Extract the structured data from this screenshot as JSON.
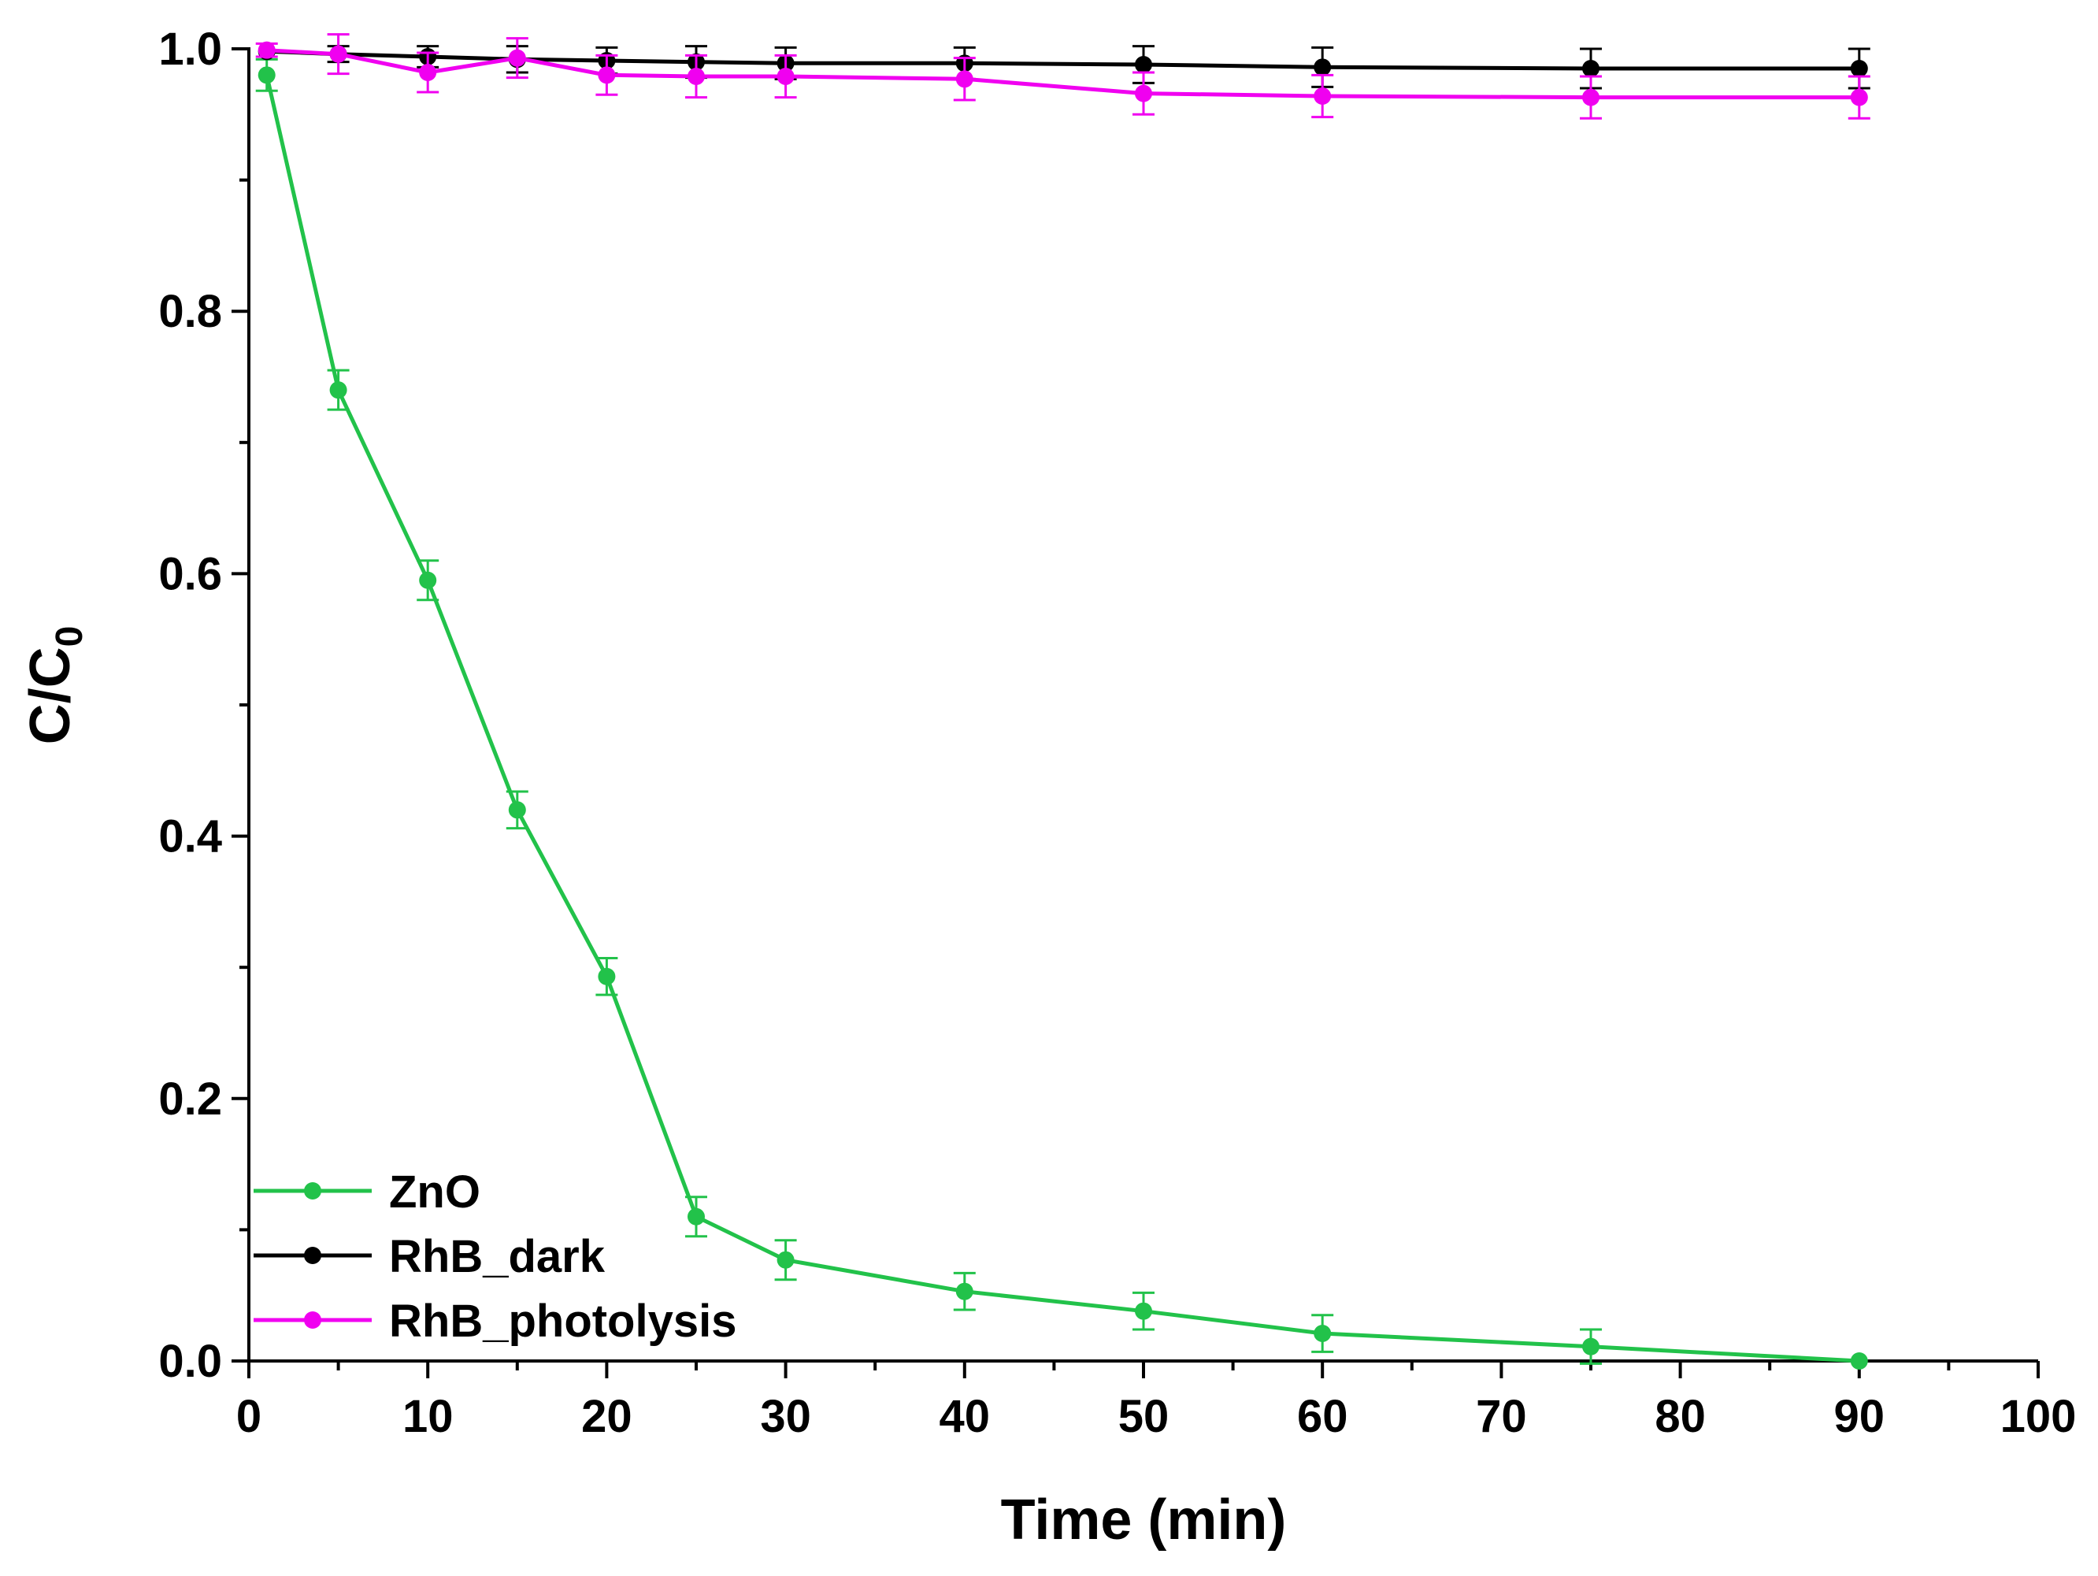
{
  "chart_data": {
    "type": "line",
    "title": "",
    "xlabel": "Time (min)",
    "ylabel_main": "C/C",
    "ylabel_sub": "0",
    "xlim": [
      0,
      100
    ],
    "ylim": [
      0,
      1.0
    ],
    "x_ticks": [
      0,
      10,
      20,
      30,
      40,
      50,
      60,
      70,
      80,
      90,
      100
    ],
    "x_tick_labels": [
      "0",
      "10",
      "20",
      "30",
      "40",
      "50",
      "60",
      "70",
      "80",
      "90",
      "100"
    ],
    "y_ticks": [
      0,
      0.2,
      0.4,
      0.6,
      0.8,
      1.0
    ],
    "y_tick_labels": [
      "0.0",
      "0.2",
      "0.4",
      "0.6",
      "0.8",
      "1.0"
    ],
    "grid": false,
    "legend_position": "bottom-left",
    "series": [
      {
        "name": "ZnO",
        "color": "#22c24a",
        "x": [
          1,
          5,
          10,
          15,
          20,
          25,
          30,
          40,
          50,
          60,
          75,
          90
        ],
        "y": [
          0.98,
          0.74,
          0.595,
          0.42,
          0.293,
          0.11,
          0.077,
          0.053,
          0.038,
          0.021,
          0.011,
          0.0
        ],
        "err": [
          0.012,
          0.015,
          0.015,
          0.014,
          0.014,
          0.015,
          0.015,
          0.014,
          0.014,
          0.014,
          0.013,
          0.0
        ]
      },
      {
        "name": "RhB_dark",
        "color": "#000000",
        "x": [
          1,
          5,
          10,
          15,
          20,
          25,
          30,
          40,
          50,
          60,
          75,
          90
        ],
        "y": [
          0.998,
          0.996,
          0.994,
          0.992,
          0.991,
          0.99,
          0.989,
          0.989,
          0.988,
          0.986,
          0.985,
          0.985
        ],
        "err": [
          0.0,
          0.006,
          0.008,
          0.01,
          0.01,
          0.012,
          0.012,
          0.012,
          0.014,
          0.015,
          0.015,
          0.015
        ]
      },
      {
        "name": "RhB_photolysis",
        "color": "#f000f0",
        "x": [
          1,
          5,
          10,
          15,
          20,
          25,
          30,
          40,
          50,
          60,
          75,
          90
        ],
        "y": [
          0.999,
          0.996,
          0.982,
          0.993,
          0.98,
          0.979,
          0.979,
          0.977,
          0.966,
          0.964,
          0.963,
          0.963
        ],
        "err": [
          0.005,
          0.015,
          0.015,
          0.015,
          0.015,
          0.016,
          0.016,
          0.016,
          0.016,
          0.016,
          0.016,
          0.016
        ]
      }
    ]
  }
}
